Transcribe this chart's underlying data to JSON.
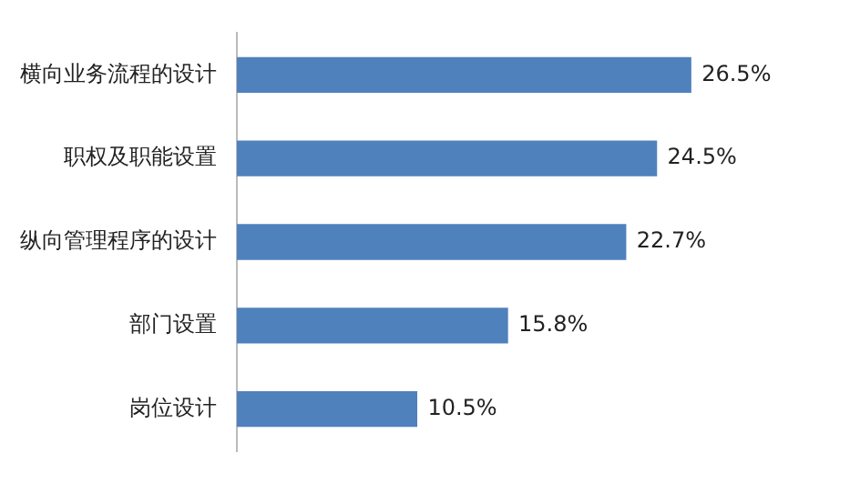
{
  "chart_data": {
    "type": "bar",
    "orientation": "horizontal",
    "categories": [
      "横向业务流程的设计",
      "职权及职能设置",
      "纵向管理程序的设计",
      "部门设置",
      "岗位设计"
    ],
    "values": [
      26.5,
      24.5,
      22.7,
      15.8,
      10.5
    ],
    "value_labels": [
      "26.5%",
      "24.5%",
      "22.7%",
      "15.8%",
      "10.5%"
    ],
    "color": "#4f81bd"
  }
}
